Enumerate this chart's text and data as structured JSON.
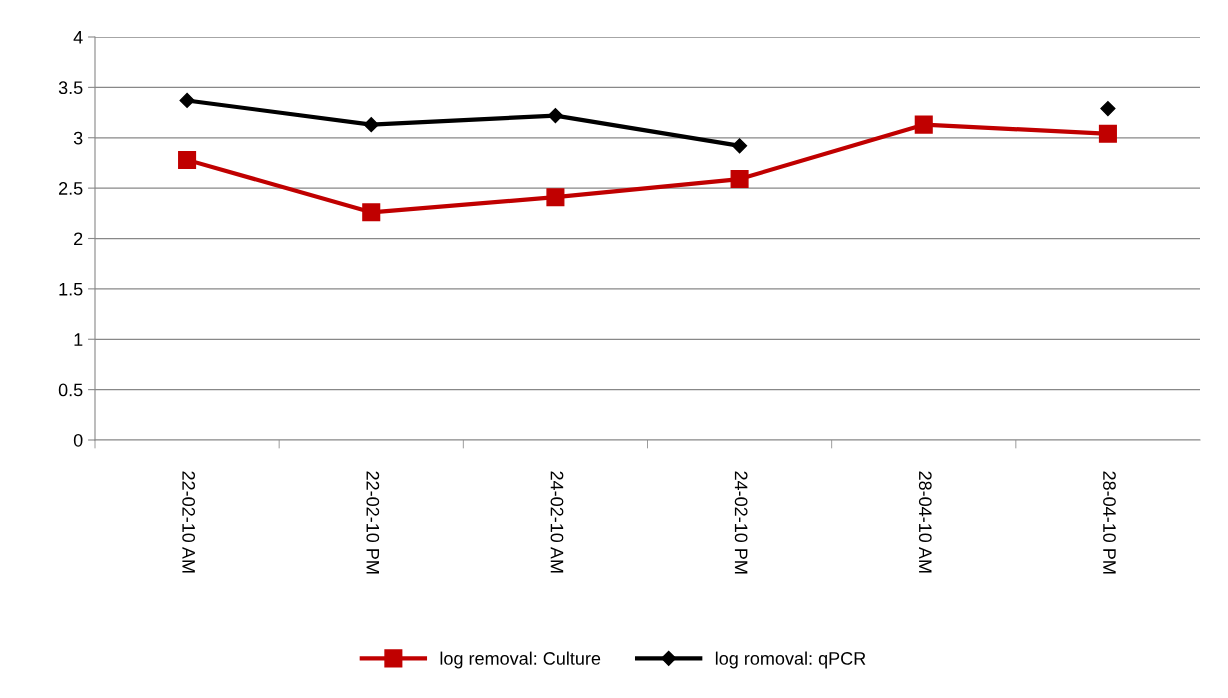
{
  "chart_data": {
    "type": "line",
    "categories": [
      "22-02-10 AM",
      "22-02-10 PM",
      "24-02-10 AM",
      "24-02-10 PM",
      "28-04-10 AM",
      "28-04-10 PM"
    ],
    "series": [
      {
        "name": "log removal: Culture",
        "color": "#c00000",
        "marker": "square",
        "values": [
          2.78,
          2.26,
          2.41,
          2.59,
          3.13,
          3.04
        ]
      },
      {
        "name": "log romoval: qPCR",
        "color": "#000000",
        "marker": "diamond",
        "values": [
          3.37,
          3.13,
          3.22,
          2.92,
          null,
          3.29
        ]
      }
    ],
    "ylim": [
      0,
      4
    ],
    "yticks": [
      0,
      0.5,
      1,
      1.5,
      2,
      2.5,
      3,
      3.5,
      4
    ],
    "grid": "y",
    "legend": "bottom",
    "line_style": "solid"
  }
}
